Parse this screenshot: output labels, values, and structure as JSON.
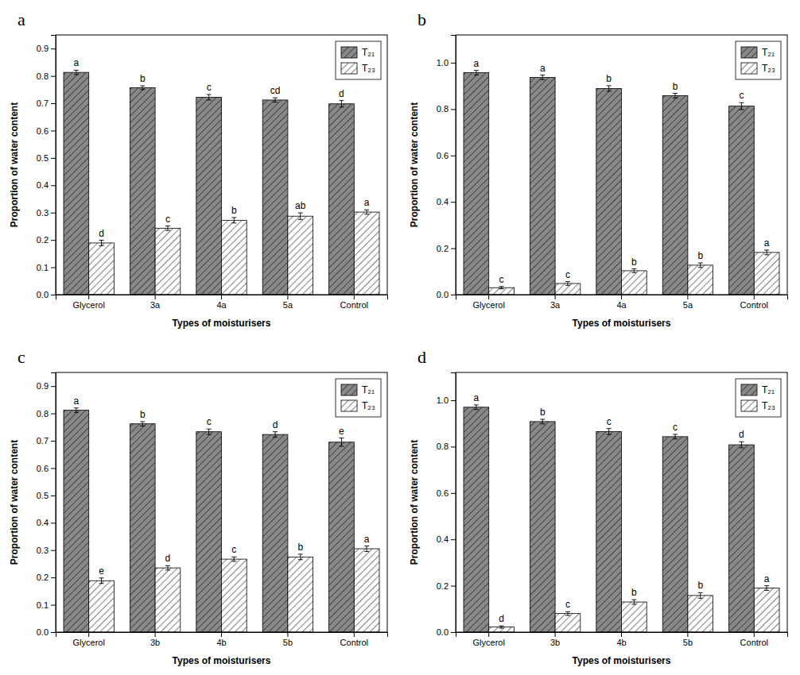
{
  "chart_data": [
    {
      "type": "bar",
      "title": "a",
      "xlabel": "Types of moisturisers",
      "ylabel": "Proportion of water content",
      "categories": [
        "Glycerol",
        "3a",
        "4a",
        "5a",
        "Control"
      ],
      "series": [
        {
          "name": "T₂₁",
          "color": "#898989",
          "values": [
            0.813,
            0.757,
            0.722,
            0.712,
            0.698
          ],
          "errors": [
            0.008,
            0.007,
            0.01,
            0.008,
            0.012
          ],
          "annotations": [
            "a",
            "b",
            "c",
            "cd",
            "d"
          ]
        },
        {
          "name": "T₂₃",
          "color": "#ffffff",
          "values": [
            0.189,
            0.243,
            0.272,
            0.287,
            0.302
          ],
          "errors": [
            0.01,
            0.008,
            0.01,
            0.012,
            0.008
          ],
          "annotations": [
            "d",
            "c",
            "b",
            "ab",
            "a"
          ]
        }
      ],
      "ylim": [
        0.0,
        0.95
      ],
      "yticks": [
        {
          "value": 0.0,
          "label": "0.0"
        },
        0.1,
        0.2,
        0.3,
        0.4,
        0.5,
        0.6,
        0.7,
        0.8,
        0.9
      ],
      "grid": false,
      "legend": "upper right"
    },
    {
      "type": "bar",
      "title": "b",
      "xlabel": "Types of moisturisers",
      "ylabel": "Proportion of water content",
      "categories": [
        "Glycerol",
        "3a",
        "4a",
        "5a",
        "Control"
      ],
      "series": [
        {
          "name": "T₂₁",
          "color": "#898989",
          "values": [
            0.957,
            0.937,
            0.889,
            0.858,
            0.813
          ],
          "errors": [
            0.01,
            0.01,
            0.012,
            0.01,
            0.015
          ],
          "annotations": [
            "a",
            "a",
            "b",
            "b",
            "c"
          ]
        },
        {
          "name": "T₂₃",
          "color": "#ffffff",
          "values": [
            0.03,
            0.048,
            0.103,
            0.127,
            0.182
          ],
          "errors": [
            0.005,
            0.008,
            0.008,
            0.01,
            0.01
          ],
          "annotations": [
            "c",
            "c",
            "b",
            "b",
            "a"
          ]
        }
      ],
      "ylim": [
        0.0,
        1.12
      ],
      "yticks": [
        {
          "value": 0.0,
          "label": "0.0"
        },
        0.2,
        0.4,
        0.6,
        0.8,
        {
          "value": 1.0,
          "label": "1.0"
        }
      ],
      "grid": false,
      "legend": "upper right"
    },
    {
      "type": "bar",
      "title": "c",
      "xlabel": "Types of moisturisers",
      "ylabel": "Proportion of water content",
      "categories": [
        "Glycerol",
        "3b",
        "4b",
        "5b",
        "Control"
      ],
      "series": [
        {
          "name": "T₂₁",
          "color": "#898989",
          "values": [
            0.812,
            0.762,
            0.733,
            0.723,
            0.695
          ],
          "errors": [
            0.008,
            0.008,
            0.01,
            0.01,
            0.015
          ],
          "annotations": [
            "a",
            "b",
            "c",
            "d",
            "e"
          ]
        },
        {
          "name": "T₂₃",
          "color": "#ffffff",
          "values": [
            0.188,
            0.235,
            0.267,
            0.275,
            0.305
          ],
          "errors": [
            0.01,
            0.008,
            0.008,
            0.01,
            0.01
          ],
          "annotations": [
            "e",
            "d",
            "c",
            "b",
            "a"
          ]
        }
      ],
      "ylim": [
        0.0,
        0.95
      ],
      "yticks": [
        {
          "value": 0.0,
          "label": "0.0"
        },
        0.1,
        0.2,
        0.3,
        0.4,
        0.5,
        0.6,
        0.7,
        0.8,
        0.9
      ],
      "grid": false,
      "legend": "upper right"
    },
    {
      "type": "bar",
      "title": "d",
      "xlabel": "Types of moisturisers",
      "ylabel": "Proportion of water content",
      "categories": [
        "Glycerol",
        "3b",
        "4b",
        "5b",
        "Control"
      ],
      "series": [
        {
          "name": "T₂₁",
          "color": "#898989",
          "values": [
            0.97,
            0.908,
            0.865,
            0.843,
            0.808
          ],
          "errors": [
            0.01,
            0.01,
            0.013,
            0.01,
            0.013
          ],
          "annotations": [
            "a",
            "b",
            "c",
            "c",
            "d"
          ]
        },
        {
          "name": "T₂₃",
          "color": "#ffffff",
          "values": [
            0.022,
            0.08,
            0.13,
            0.158,
            0.19
          ],
          "errors": [
            0.005,
            0.008,
            0.01,
            0.012,
            0.01
          ],
          "annotations": [
            "d",
            "c",
            "b",
            "b",
            "a"
          ]
        }
      ],
      "ylim": [
        0.0,
        1.12
      ],
      "yticks": [
        {
          "value": 0.0,
          "label": "0.0"
        },
        0.2,
        0.4,
        0.6,
        0.8,
        {
          "value": 1.0,
          "label": "1.0"
        }
      ],
      "grid": false,
      "legend": "upper right"
    }
  ]
}
